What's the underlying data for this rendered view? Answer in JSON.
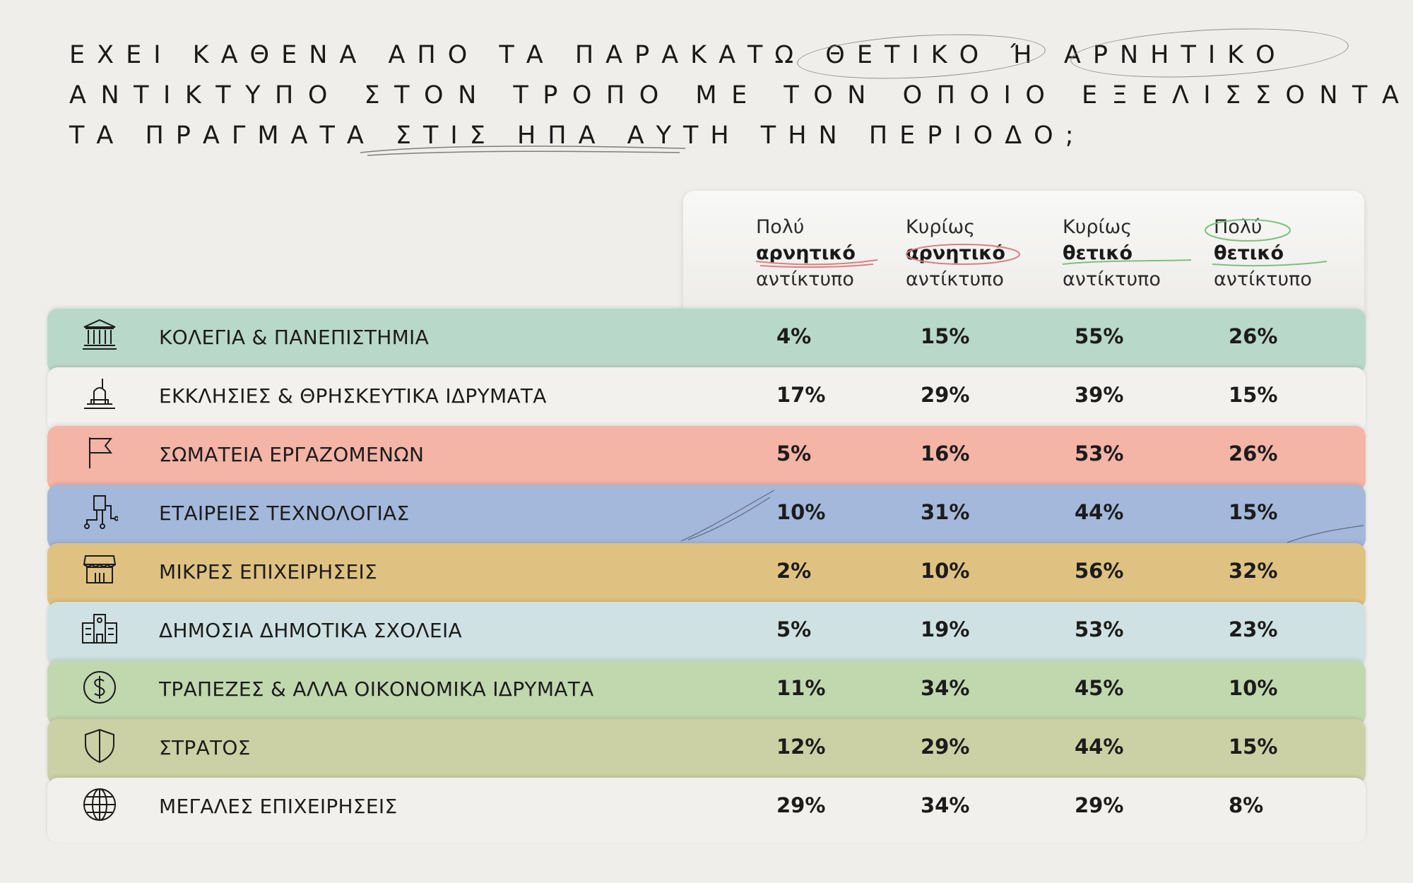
{
  "title": {
    "lines": [
      "ΕΧΕΙ ΚΑΘΕΝΑ ΑΠΟ ΤΑ ΠΑΡΑΚΑΤΩ ΘΕΤΙΚΟ Ή ΑΡΝΗΤΙΚΟ",
      "ΑΝΤΙΚΤΥΠΟ ΣΤΟΝ ΤΡΟΠΟ ΜΕ ΤΟΝ ΟΠΟΙΟ ΕΞΕΛΙΣΣΟΝΤΑΙ",
      "ΤΑ ΠΡΑΓΜΑΤΑ ΣΤΙΣ ΗΠΑ ΑΥΤΗ ΤΗΝ ΠΕΡΙΟΔΟ;"
    ]
  },
  "chart_data": {
    "type": "table",
    "columns": [
      {
        "top": "Πολύ",
        "bold": "αρνητικό",
        "bottom": "αντίκτυπο"
      },
      {
        "top": "Κυρίως",
        "bold": "αρνητικό",
        "bottom": "αντίκτυπο"
      },
      {
        "top": "Κυρίως",
        "bold": "θετικό",
        "bottom": "αντίκτυπο"
      },
      {
        "top": "Πολύ",
        "bold": "θετικό",
        "bottom": "αντίκτυπο"
      }
    ],
    "rows": [
      {
        "label": "ΚΟΛΕΓΙΑ & ΠΑΝΕΠΙΣΤΗΜΙΑ",
        "icon": "university-icon",
        "color": "#b8d8c9",
        "values": [
          "4%",
          "15%",
          "55%",
          "26%"
        ]
      },
      {
        "label": "ΕΚΚΛΗΣΙΕΣ & ΘΡΗΣΚΕΥΤΙΚΑ ΙΔΡΥΜΑΤΑ",
        "icon": "church-icon",
        "color": "#f2f1ee",
        "values": [
          "17%",
          "29%",
          "39%",
          "15%"
        ]
      },
      {
        "label": "ΣΩΜΑΤΕΙΑ ΕΡΓΑΖΟΜΕΝΩΝ",
        "icon": "flag-icon",
        "color": "#f4b4a6",
        "values": [
          "5%",
          "16%",
          "53%",
          "26%"
        ]
      },
      {
        "label": "ΕΤΑΙΡΕΙΕΣ ΤΕΧΝΟΛΟΓΙΑΣ",
        "icon": "circuit-icon",
        "color": "#a3b8da",
        "values": [
          "10%",
          "31%",
          "44%",
          "15%"
        ]
      },
      {
        "label": "ΜΙΚΡΕΣ ΕΠΙΧΕΙΡΗΣΕΙΣ",
        "icon": "store-icon",
        "color": "#dfc281",
        "values": [
          "2%",
          "10%",
          "56%",
          "32%"
        ]
      },
      {
        "label": "ΔΗΜΟΣΙΑ ΔΗΜΟΤΙΚΑ ΣΧΟΛΕΙΑ",
        "icon": "school-icon",
        "color": "#cfe1e2",
        "values": [
          "5%",
          "19%",
          "53%",
          "23%"
        ]
      },
      {
        "label": "ΤΡΑΠΕΖΕΣ & ΑΛΛΑ ΟΙΚΟΝΟΜΙΚΑ ΙΔΡΥΜΑΤΑ",
        "icon": "dollar-icon",
        "color": "#c1d7ae",
        "values": [
          "11%",
          "34%",
          "45%",
          "10%"
        ]
      },
      {
        "label": "ΣΤΡΑΤΟΣ",
        "icon": "shield-icon",
        "color": "#ccd1a5",
        "values": [
          "12%",
          "29%",
          "44%",
          "15%"
        ]
      },
      {
        "label": "ΜΕΓΑΛΕΣ ΕΠΙΧΕΙΡΗΣΕΙΣ",
        "icon": "globe-icon",
        "color": "#f1f0ec",
        "values": [
          "29%",
          "34%",
          "29%",
          "8%"
        ]
      }
    ]
  }
}
